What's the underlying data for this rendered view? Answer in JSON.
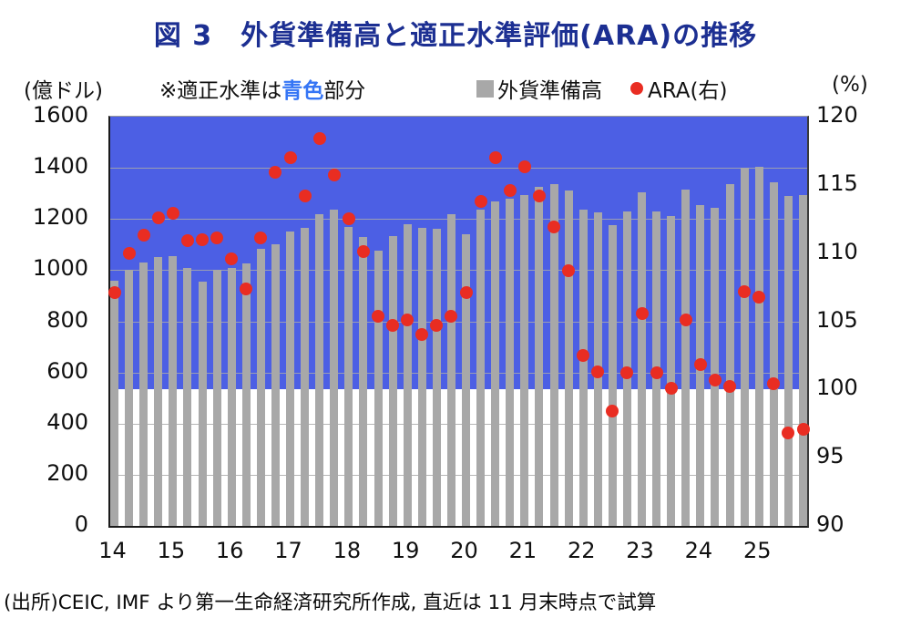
{
  "title": "図 3　外貨準備高と適正水準評価(ARA)の推移",
  "axes": {
    "left_unit": "(億ドル)",
    "right_unit": "(%)"
  },
  "legend": {
    "note_prefix": "※適正水準は",
    "note_blue": "青色",
    "note_suffix": "部分",
    "bars_label": "外貨準備高",
    "dots_label": "ARA(右)"
  },
  "source": "(出所)CEIC, IMF より第一生命経済研究所作成, 直近は 11 月末時点で試算",
  "colors": {
    "title_navy": "#1c2f92",
    "adequate_band_blue": "#4c5fe4",
    "legend_blue_text": "#3575f5",
    "reserves_bar_gray": "#a8a8a8",
    "ara_dot_red": "#e92d22",
    "grid_gray": "#a9a9a9"
  },
  "chart_data": {
    "type": "bar",
    "title": "図 3　外貨準備高と適正水準評価(ARA)の推移",
    "frequency": "quarterly",
    "years": [
      "14",
      "15",
      "16",
      "17",
      "18",
      "19",
      "20",
      "21",
      "22",
      "23",
      "24",
      "25"
    ],
    "bars_per_year": 4,
    "left_axis": {
      "unit": "億ドル",
      "min": 0,
      "max": 1600,
      "step": 200
    },
    "right_axis": {
      "unit": "%",
      "min": 90,
      "max": 120,
      "step": 5
    },
    "adequate_band": {
      "axis": "right",
      "from_pct": 100,
      "to_pct": 120
    },
    "grid": true,
    "series": [
      {
        "name": "外貨準備高",
        "type": "bar",
        "axis": "left",
        "values": [
          960,
          1000,
          1030,
          1050,
          1055,
          1010,
          955,
          1000,
          1010,
          1025,
          1085,
          1100,
          1150,
          1165,
          1220,
          1235,
          1170,
          1130,
          1075,
          1135,
          1180,
          1165,
          1160,
          1220,
          1140,
          1235,
          1270,
          1280,
          1295,
          1325,
          1335,
          1310,
          1235,
          1225,
          1175,
          1230,
          1305,
          1230,
          1210,
          1315,
          1255,
          1245,
          1335,
          1400,
          1405,
          1345,
          1290,
          1295
        ]
      },
      {
        "name": "ARA(右)",
        "type": "scatter",
        "axis": "right",
        "values": [
          107.1,
          110.0,
          111.3,
          112.6,
          112.9,
          110.9,
          111.0,
          111.1,
          109.6,
          107.4,
          111.1,
          115.9,
          117.0,
          114.2,
          118.4,
          115.7,
          112.5,
          110.1,
          105.4,
          104.7,
          105.1,
          104.0,
          104.7,
          105.4,
          107.1,
          113.8,
          117.0,
          114.6,
          116.3,
          114.2,
          111.9,
          108.7,
          102.5,
          101.3,
          98.4,
          101.2,
          105.6,
          101.2,
          100.1,
          105.1,
          101.8,
          100.7,
          100.2,
          107.2,
          106.8,
          100.4,
          96.8,
          97.1
        ]
      }
    ]
  }
}
